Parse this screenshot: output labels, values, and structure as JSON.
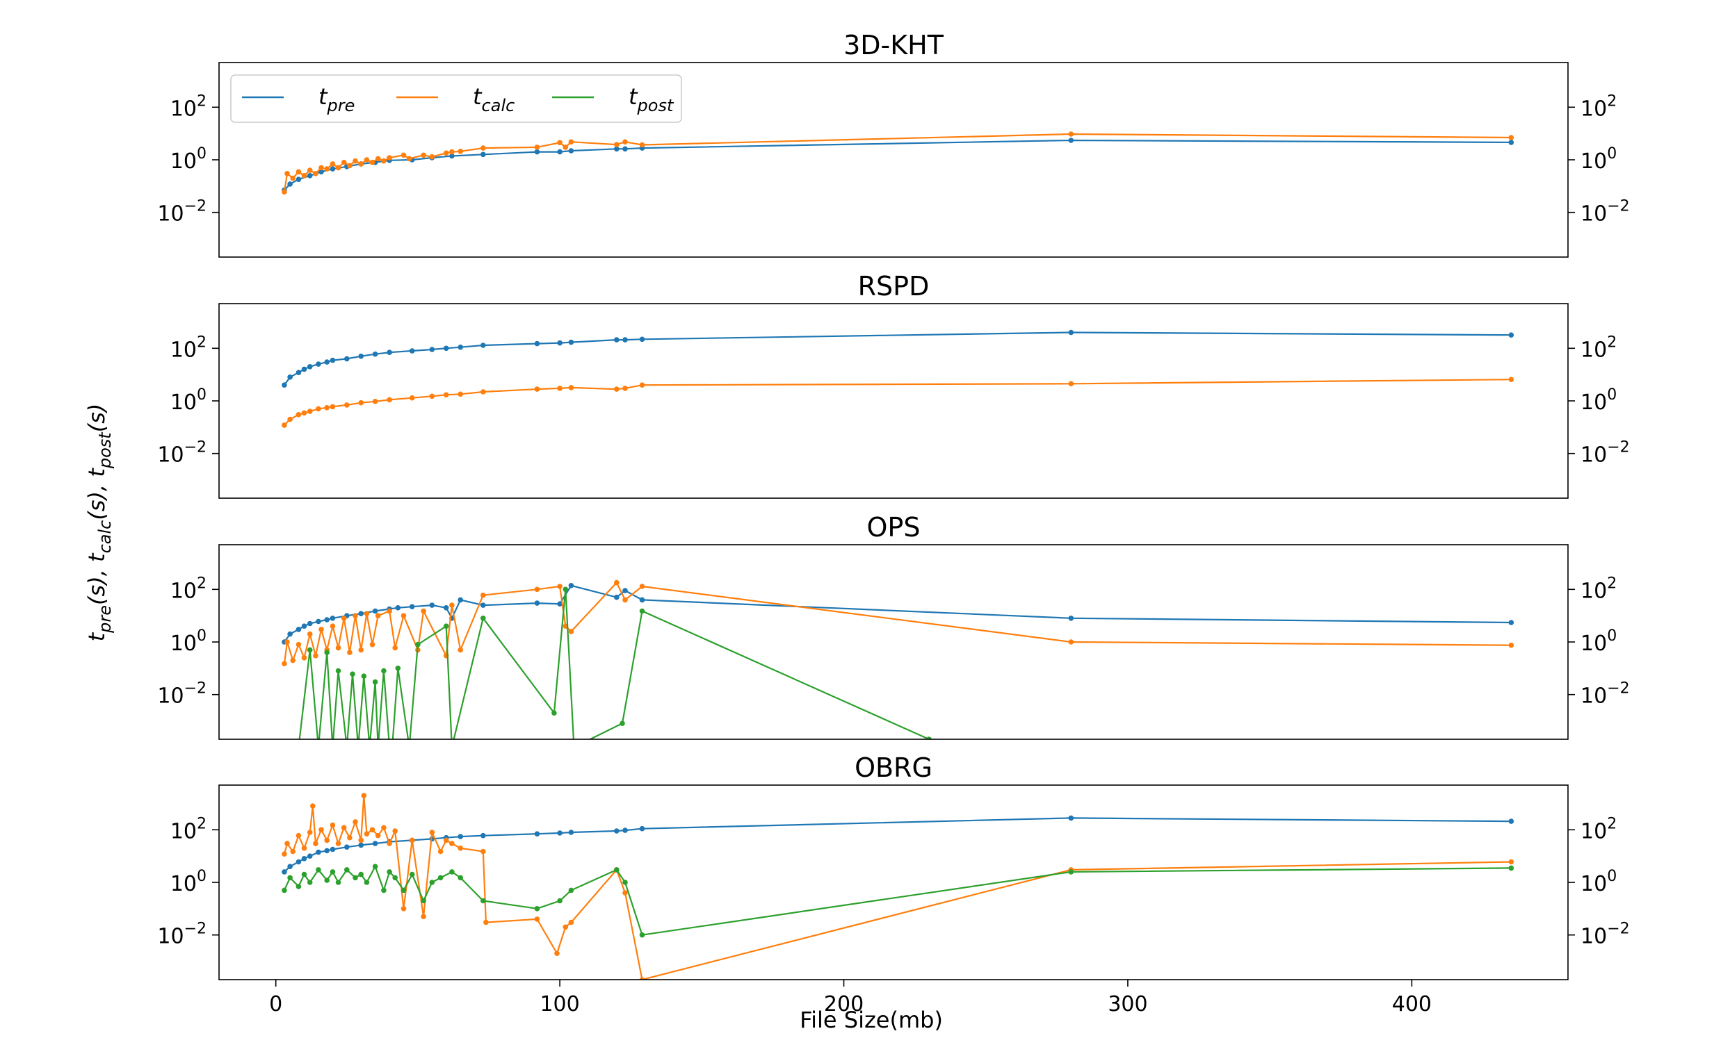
{
  "chart_data": {
    "type": "line",
    "shared_xlabel": "File Size(mb)",
    "shared_ylabel": "t_pre(s), t_calc(s), t_post(s)",
    "xlim": [
      -20,
      455
    ],
    "xticks": [
      0,
      100,
      200,
      300,
      400
    ],
    "yscale": "log",
    "ylim": [
      0.0002,
      5000
    ],
    "yticks": [
      {
        "value": 0.01,
        "base": "10",
        "exp": "−2"
      },
      {
        "value": 1,
        "base": "10",
        "exp": "0"
      },
      {
        "value": 100,
        "base": "10",
        "exp": "2"
      }
    ],
    "grid": false,
    "legend": {
      "placement": "upper-left of first panel",
      "entries": [
        {
          "key": "pre",
          "base": "t",
          "sub": "pre",
          "color": "#1f77b4"
        },
        {
          "key": "calc",
          "base": "t",
          "sub": "calc",
          "color": "#ff7f0e"
        },
        {
          "key": "post",
          "base": "t",
          "sub": "post",
          "color": "#2ca02c"
        }
      ]
    },
    "panels": [
      {
        "title": "3D-KHT",
        "series": [
          {
            "key": "pre",
            "x": [
              3,
              5,
              8,
              12,
              16,
              20,
              25,
              30,
              35,
              40,
              48,
              55,
              62,
              73,
              92,
              100,
              104,
              120,
              123,
              129,
              280,
              435
            ],
            "y": [
              0.07,
              0.12,
              0.18,
              0.25,
              0.35,
              0.45,
              0.55,
              0.7,
              0.8,
              0.95,
              1.0,
              1.2,
              1.4,
              1.6,
              2.0,
              2.0,
              2.2,
              2.6,
              2.6,
              2.8,
              5.5,
              4.6
            ]
          },
          {
            "key": "calc",
            "x": [
              3,
              4,
              6,
              8,
              10,
              12,
              14,
              16,
              18,
              20,
              22,
              24,
              26,
              28,
              30,
              32,
              34,
              36,
              38,
              40,
              45,
              47,
              52,
              55,
              60,
              62,
              65,
              73,
              92,
              100,
              102,
              104,
              120,
              123,
              129,
              280,
              435
            ],
            "y": [
              0.06,
              0.3,
              0.2,
              0.35,
              0.25,
              0.4,
              0.3,
              0.5,
              0.45,
              0.7,
              0.5,
              0.8,
              0.6,
              0.9,
              0.7,
              1.0,
              0.8,
              1.1,
              0.9,
              1.2,
              1.5,
              1.1,
              1.5,
              1.3,
              1.8,
              2.0,
              2.1,
              2.8,
              3.0,
              4.5,
              3.0,
              4.8,
              3.8,
              4.8,
              3.7,
              9.5,
              7.0
            ]
          }
        ]
      },
      {
        "title": "RSPD",
        "series": [
          {
            "key": "pre",
            "x": [
              3,
              5,
              8,
              10,
              12,
              15,
              18,
              20,
              25,
              30,
              35,
              40,
              48,
              55,
              60,
              65,
              73,
              92,
              100,
              104,
              120,
              123,
              129,
              280,
              435
            ],
            "y": [
              4,
              8,
              12,
              16,
              20,
              25,
              30,
              35,
              40,
              50,
              60,
              70,
              80,
              90,
              100,
              110,
              130,
              150,
              160,
              170,
              210,
              210,
              220,
              400,
              320
            ]
          },
          {
            "key": "calc",
            "x": [
              3,
              5,
              8,
              10,
              12,
              15,
              18,
              20,
              25,
              30,
              35,
              40,
              48,
              55,
              60,
              65,
              73,
              92,
              100,
              104,
              120,
              123,
              129,
              280,
              435
            ],
            "y": [
              0.12,
              0.2,
              0.3,
              0.35,
              0.4,
              0.5,
              0.55,
              0.6,
              0.7,
              0.85,
              0.95,
              1.1,
              1.3,
              1.5,
              1.7,
              1.8,
              2.2,
              2.8,
              3.0,
              3.2,
              2.8,
              3.0,
              4.0,
              4.5,
              6.5
            ]
          }
        ]
      },
      {
        "title": "OPS",
        "series": [
          {
            "key": "pre",
            "x": [
              3,
              5,
              8,
              10,
              12,
              15,
              18,
              20,
              25,
              30,
              35,
              40,
              43,
              48,
              55,
              60,
              62,
              65,
              73,
              92,
              100,
              104,
              120,
              123,
              129,
              280,
              435
            ],
            "y": [
              1,
              2,
              3,
              4,
              5,
              6,
              7,
              8,
              10,
              12,
              15,
              18,
              20,
              22,
              25,
              20,
              8,
              40,
              25,
              30,
              28,
              140,
              50,
              90,
              40,
              8,
              5.5
            ]
          },
          {
            "key": "calc",
            "x": [
              3,
              4,
              6,
              8,
              10,
              12,
              14,
              16,
              18,
              20,
              22,
              24,
              26,
              28,
              30,
              32,
              34,
              36,
              40,
              42,
              45,
              50,
              52,
              60,
              62,
              65,
              73,
              92,
              100,
              102,
              104,
              120,
              123,
              129,
              280,
              435
            ],
            "y": [
              0.15,
              1.0,
              0.2,
              0.8,
              0.25,
              2.0,
              0.3,
              3.0,
              0.5,
              4.0,
              0.6,
              8.0,
              0.4,
              10.0,
              0.5,
              12.0,
              0.8,
              10.0,
              15.0,
              0.6,
              10.0,
              0.5,
              15.0,
              0.3,
              25.0,
              0.5,
              60.0,
              100.0,
              130.0,
              4.0,
              2.5,
              180.0,
              40.0,
              130.0,
              1.0,
              0.75
            ]
          },
          {
            "key": "post",
            "x": [
              8,
              12,
              15,
              18,
              20,
              22,
              25,
              27,
              29,
              31,
              33,
              35,
              36,
              38,
              40,
              41,
              43,
              47,
              50,
              60,
              62,
              73,
              98,
              102,
              105,
              122,
              129,
              230
            ],
            "y": [
              0.0001,
              0.5,
              0.0001,
              0.4,
              0.0001,
              0.08,
              0.0001,
              0.06,
              0.0001,
              0.05,
              0.0001,
              0.03,
              0.0001,
              0.08,
              0.0001,
              0.0001,
              0.1,
              0.0001,
              0.8,
              4.0,
              0.0001,
              8.0,
              0.002,
              100.0,
              0.0001,
              0.0008,
              15.0,
              0.0002
            ]
          }
        ]
      },
      {
        "title": "OBRG",
        "series": [
          {
            "key": "pre",
            "x": [
              3,
              5,
              8,
              10,
              12,
              15,
              18,
              20,
              25,
              30,
              35,
              40,
              48,
              55,
              60,
              65,
              73,
              92,
              100,
              104,
              120,
              123,
              129,
              280,
              435
            ],
            "y": [
              2.5,
              4,
              6,
              8,
              10,
              14,
              16,
              18,
              22,
              26,
              30,
              35,
              40,
              45,
              50,
              55,
              60,
              70,
              75,
              80,
              90,
              95,
              110,
              280,
              210
            ]
          },
          {
            "key": "calc",
            "x": [
              3,
              4,
              6,
              8,
              10,
              12,
              13,
              14,
              16,
              18,
              20,
              22,
              24,
              26,
              28,
              30,
              31,
              32,
              34,
              36,
              38,
              40,
              42,
              45,
              48,
              52,
              55,
              58,
              60,
              62,
              65,
              73,
              74,
              92,
              99,
              102,
              104,
              120,
              123,
              129,
              280,
              435
            ],
            "y": [
              12,
              30,
              15,
              60,
              20,
              80,
              800,
              30,
              100,
              40,
              150,
              30,
              120,
              50,
              200,
              40,
              2000,
              70,
              100,
              60,
              120,
              30,
              90,
              0.1,
              40,
              0.05,
              80,
              15,
              40,
              30,
              20,
              15,
              0.03,
              0.04,
              0.002,
              0.02,
              0.03,
              3.0,
              0.4,
              0.0002,
              3.0,
              6.0
            ]
          },
          {
            "key": "post",
            "x": [
              3,
              5,
              8,
              10,
              12,
              15,
              18,
              20,
              22,
              25,
              28,
              30,
              32,
              35,
              38,
              40,
              42,
              45,
              48,
              52,
              55,
              58,
              62,
              65,
              73,
              92,
              100,
              104,
              120,
              123,
              129,
              280,
              435
            ],
            "y": [
              0.5,
              1.5,
              0.7,
              2.0,
              1.0,
              3.0,
              1.2,
              2.5,
              1.0,
              3.0,
              1.5,
              2.0,
              1.0,
              4.0,
              0.5,
              2.5,
              1.5,
              0.5,
              2.0,
              0.2,
              1.0,
              1.5,
              2.5,
              1.5,
              0.2,
              0.1,
              0.2,
              0.5,
              3.0,
              1.0,
              0.01,
              2.5,
              3.5
            ]
          }
        ]
      }
    ]
  }
}
